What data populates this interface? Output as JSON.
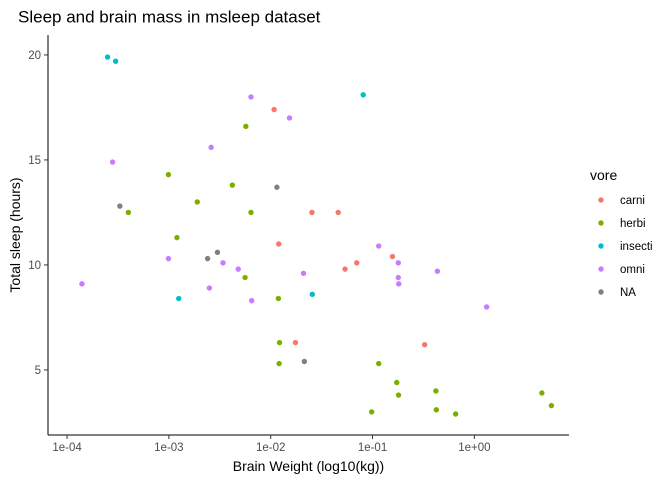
{
  "chart_data": {
    "type": "scatter",
    "title": "Sleep and brain mass in msleep dataset",
    "xlabel": "Brain Weight (log10(kg))",
    "ylabel": "Total sleep (hours)",
    "x_scale": "log10",
    "xlim": [
      6.5e-05,
      8.5
    ],
    "ylim": [
      1.9,
      20.95
    ],
    "x_ticks": [
      0.0001,
      0.001,
      0.01,
      0.1,
      1
    ],
    "x_tick_labels": [
      "1e-04",
      "1e-03",
      "1e-02",
      "1e-01",
      "1e+00"
    ],
    "y_ticks": [
      5,
      10,
      15,
      20
    ],
    "y_tick_labels": [
      "5",
      "10",
      "15",
      "20"
    ],
    "grid": false,
    "legend": {
      "title": "vore",
      "position": "right",
      "entries": [
        {
          "label": "carni",
          "color": "#F8766D"
        },
        {
          "label": "herbi",
          "color": "#7CAE00"
        },
        {
          "label": "insecti",
          "color": "#00BFC4"
        },
        {
          "label": "omni",
          "color": "#C77CFF"
        },
        {
          "label": "NA",
          "color": "#7F7F7F"
        }
      ]
    },
    "series": [
      {
        "name": "carni",
        "color": "#F8766D",
        "points": [
          {
            "x": 0.0108,
            "y": 17.4
          },
          {
            "x": 0.012,
            "y": 11.0
          },
          {
            "x": 0.0254,
            "y": 12.5
          },
          {
            "x": 0.046,
            "y": 12.5
          },
          {
            "x": 0.0537,
            "y": 9.8
          },
          {
            "x": 0.07,
            "y": 10.1
          },
          {
            "x": 0.157,
            "y": 10.4
          },
          {
            "x": 0.0175,
            "y": 6.3
          },
          {
            "x": 0.325,
            "y": 6.2
          }
        ]
      },
      {
        "name": "herbi",
        "color": "#7CAE00",
        "points": [
          {
            "x": 0.0057,
            "y": 16.6
          },
          {
            "x": 0.00099,
            "y": 14.3
          },
          {
            "x": 0.0042,
            "y": 13.8
          },
          {
            "x": 0.0019,
            "y": 13.0
          },
          {
            "x": 0.0004,
            "y": 12.5
          },
          {
            "x": 0.0064,
            "y": 12.5
          },
          {
            "x": 0.0012,
            "y": 11.3
          },
          {
            "x": 0.0056,
            "y": 9.4
          },
          {
            "x": 0.0119,
            "y": 8.4
          },
          {
            "x": 0.0122,
            "y": 6.3
          },
          {
            "x": 0.0121,
            "y": 5.3
          },
          {
            "x": 0.115,
            "y": 5.3
          },
          {
            "x": 0.173,
            "y": 4.4
          },
          {
            "x": 0.419,
            "y": 4.0
          },
          {
            "x": 0.18,
            "y": 3.8
          },
          {
            "x": 4.603,
            "y": 3.9
          },
          {
            "x": 5.712,
            "y": 3.3
          },
          {
            "x": 0.098,
            "y": 3.0
          },
          {
            "x": 0.423,
            "y": 3.1
          },
          {
            "x": 0.655,
            "y": 2.9
          }
        ]
      },
      {
        "name": "insecti",
        "color": "#00BFC4",
        "points": [
          {
            "x": 0.00025,
            "y": 19.9
          },
          {
            "x": 0.0003,
            "y": 19.7
          },
          {
            "x": 0.081,
            "y": 18.1
          },
          {
            "x": 0.00125,
            "y": 8.4
          },
          {
            "x": 0.0256,
            "y": 8.6
          }
        ]
      },
      {
        "name": "omni",
        "color": "#C77CFF",
        "points": [
          {
            "x": 0.0064,
            "y": 18.0
          },
          {
            "x": 0.0153,
            "y": 17.0
          },
          {
            "x": 0.0026,
            "y": 15.6
          },
          {
            "x": 0.00028,
            "y": 14.9
          },
          {
            "x": 0.115,
            "y": 10.9
          },
          {
            "x": 0.00099,
            "y": 10.3
          },
          {
            "x": 0.0034,
            "y": 10.1
          },
          {
            "x": 0.179,
            "y": 10.1
          },
          {
            "x": 0.0048,
            "y": 9.8
          },
          {
            "x": 0.021,
            "y": 9.6
          },
          {
            "x": 0.433,
            "y": 9.7
          },
          {
            "x": 0.179,
            "y": 9.4
          },
          {
            "x": 0.181,
            "y": 9.1
          },
          {
            "x": 0.00014,
            "y": 9.1
          },
          {
            "x": 0.0025,
            "y": 8.9
          },
          {
            "x": 0.0065,
            "y": 8.3
          },
          {
            "x": 1.32,
            "y": 8.0
          }
        ]
      },
      {
        "name": "NA",
        "color": "#7F7F7F",
        "points": [
          {
            "x": 0.00033,
            "y": 12.8
          },
          {
            "x": 0.0115,
            "y": 13.7
          },
          {
            "x": 0.003,
            "y": 10.6
          },
          {
            "x": 0.0024,
            "y": 10.3
          },
          {
            "x": 0.0214,
            "y": 5.4
          }
        ]
      }
    ]
  }
}
